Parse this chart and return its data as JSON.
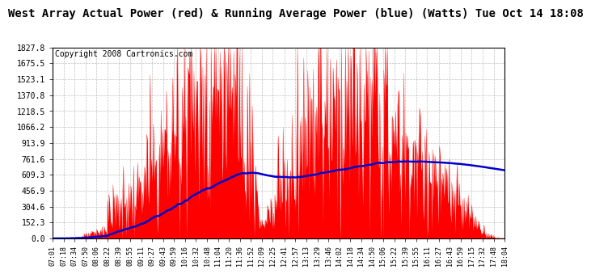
{
  "title": "West Array Actual Power (red) & Running Average Power (blue) (Watts) Tue Oct 14 18:08",
  "copyright": "Copyright 2008 Cartronics.com",
  "y_ticks": [
    0.0,
    152.3,
    304.6,
    456.9,
    609.3,
    761.6,
    913.9,
    1066.2,
    1218.5,
    1370.8,
    1523.1,
    1675.5,
    1827.8
  ],
  "x_labels": [
    "07:01",
    "07:18",
    "07:34",
    "07:50",
    "08:06",
    "08:22",
    "08:39",
    "08:55",
    "09:11",
    "09:27",
    "09:43",
    "09:59",
    "10:16",
    "10:32",
    "10:48",
    "11:04",
    "11:20",
    "11:36",
    "11:52",
    "12:09",
    "12:25",
    "12:41",
    "12:57",
    "13:13",
    "13:29",
    "13:46",
    "14:02",
    "14:18",
    "14:34",
    "14:50",
    "15:06",
    "15:22",
    "15:39",
    "15:55",
    "16:11",
    "16:27",
    "16:43",
    "16:59",
    "17:15",
    "17:32",
    "17:48",
    "18:04"
  ],
  "bg_color": "#ffffff",
  "plot_bg": "#ffffff",
  "grid_color": "#b0b0b0",
  "red_color": "#ff0000",
  "blue_color": "#0000cc",
  "title_fontsize": 10,
  "copyright_fontsize": 7
}
